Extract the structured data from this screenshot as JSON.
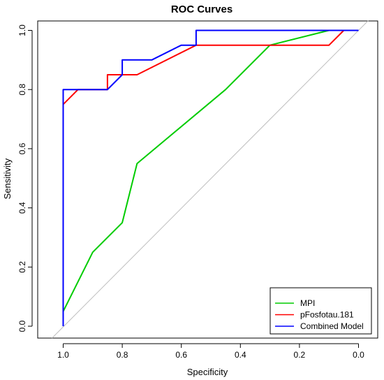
{
  "chart_data": {
    "type": "line",
    "title": "ROC Curves",
    "xlabel": "Specificity",
    "ylabel": "Sensitivity",
    "xlim": [
      1.05,
      -0.05
    ],
    "ylim": [
      0,
      1.0
    ],
    "x_reversed": true,
    "x_ticks": [
      "1.0",
      "0.8",
      "0.6",
      "0.4",
      "0.2",
      "0.0"
    ],
    "y_ticks": [
      "0.0",
      "0.2",
      "0.4",
      "0.6",
      "0.8",
      "1.0"
    ],
    "grid": false,
    "legend_position": "bottom-right",
    "reference_line": {
      "from": [
        1.0,
        0.0
      ],
      "to": [
        0.0,
        1.0
      ],
      "color": "#bebebe"
    },
    "series": [
      {
        "name": "MPI",
        "color": "#00cc00",
        "points": [
          [
            1.0,
            0.05
          ],
          [
            0.9,
            0.25
          ],
          [
            0.8,
            0.35
          ],
          [
            0.75,
            0.55
          ],
          [
            0.45,
            0.8
          ],
          [
            0.3,
            0.95
          ],
          [
            0.1,
            1.0
          ],
          [
            0.0,
            1.0
          ]
        ]
      },
      {
        "name": "pFosfotau.181",
        "color": "#ff0000",
        "points": [
          [
            1.0,
            0.75
          ],
          [
            0.95,
            0.8
          ],
          [
            0.85,
            0.8
          ],
          [
            0.85,
            0.85
          ],
          [
            0.75,
            0.85
          ],
          [
            0.55,
            0.95
          ],
          [
            0.1,
            0.95
          ],
          [
            0.05,
            1.0
          ],
          [
            0.0,
            1.0
          ]
        ]
      },
      {
        "name": "Combined Model",
        "color": "#0000ff",
        "points": [
          [
            1.0,
            0.0
          ],
          [
            1.0,
            0.8
          ],
          [
            0.85,
            0.8
          ],
          [
            0.8,
            0.85
          ],
          [
            0.8,
            0.9
          ],
          [
            0.7,
            0.9
          ],
          [
            0.6,
            0.95
          ],
          [
            0.55,
            0.95
          ],
          [
            0.55,
            1.0
          ],
          [
            0.0,
            1.0
          ]
        ]
      }
    ]
  }
}
